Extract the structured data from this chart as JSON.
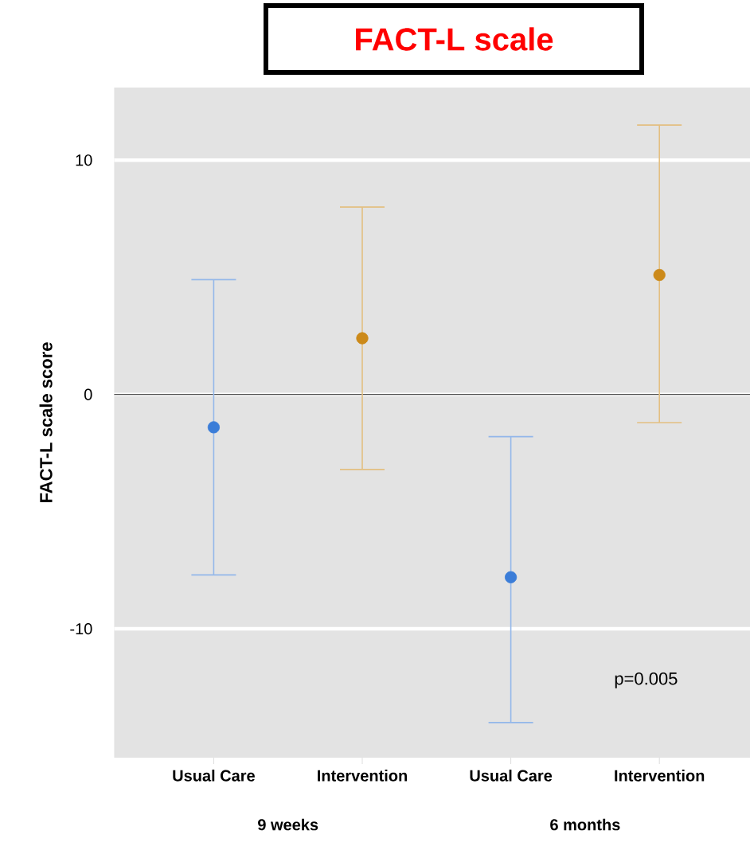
{
  "chart_data": {
    "type": "scatter",
    "title": "FACT-L scale",
    "ylabel": "FACT-L scale score",
    "categories": [
      "Usual Care",
      "Intervention",
      "Usual Care",
      "Intervention"
    ],
    "values": [
      -1.4,
      2.4,
      -7.8,
      5.1
    ],
    "colors": [
      "#3b7dd8",
      "#cc8a1a",
      "#3b7dd8",
      "#cc8a1a"
    ],
    "errors": [
      [
        -7.7,
        4.9
      ],
      [
        -3.2,
        8.0
      ],
      [
        -14.0,
        -1.8
      ],
      [
        -1.2,
        11.5
      ]
    ],
    "ylim": [
      -15.5,
      13.1
    ],
    "yticks": [
      -10,
      0,
      10
    ],
    "grid": "y",
    "marker": "circle",
    "ref_lines": [
      {
        "axis": "y",
        "value": 0,
        "color": "#555555"
      }
    ],
    "annotations": [
      "9 weeks",
      "6 months",
      "p=0.005"
    ]
  }
}
